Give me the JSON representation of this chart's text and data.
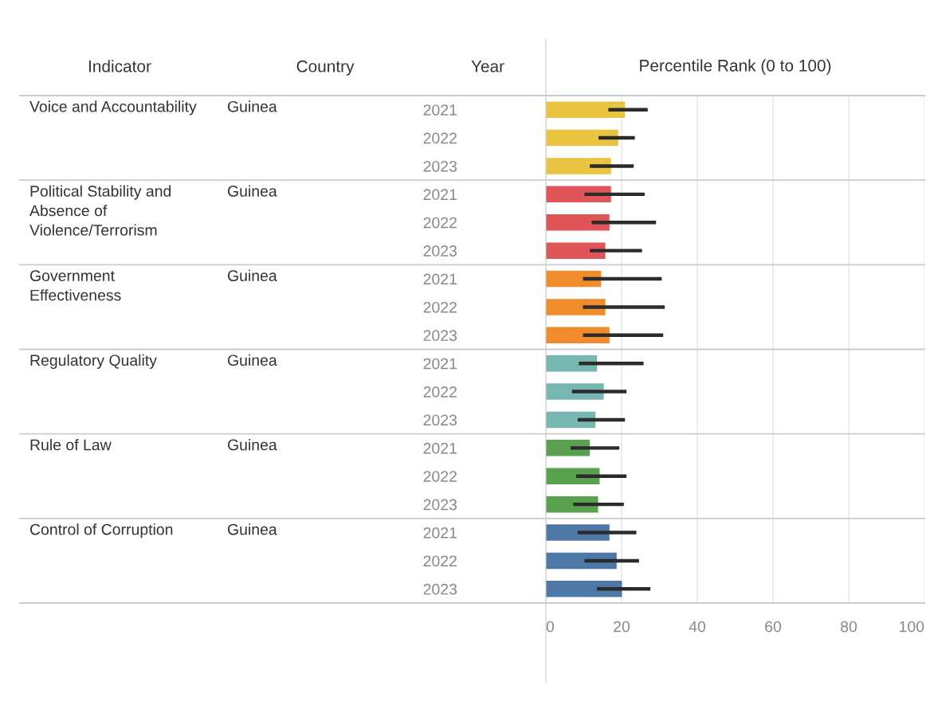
{
  "chart_data": {
    "type": "bar",
    "orientation": "horizontal",
    "xlabel": "Percentile Rank (0 to 100)",
    "categories": [
      "2021",
      "2022",
      "2023",
      "2021",
      "2022",
      "2023",
      "2021",
      "2022",
      "2023",
      "2021",
      "2022",
      "2023",
      "2021",
      "2022",
      "2023",
      "2021",
      "2022",
      "2023"
    ],
    "values": [
      20.9,
      19.1,
      17.2,
      17.2,
      16.8,
      15.7,
      14.6,
      15.7,
      16.8,
      13.5,
      15.3,
      13.1,
      11.6,
      14.2,
      13.8,
      16.8,
      18.7,
      20.1
    ],
    "errors": [
      [
        16.5,
        26.9
      ],
      [
        13.9,
        23.5
      ],
      [
        11.6,
        23.2
      ],
      [
        10.2,
        26.1
      ],
      [
        12.1,
        29.1
      ],
      [
        11.6,
        25.4
      ],
      [
        9.8,
        30.6
      ],
      [
        9.8,
        31.4
      ],
      [
        9.8,
        31.0
      ],
      [
        8.7,
        25.8
      ],
      [
        6.9,
        21.3
      ],
      [
        8.4,
        20.9
      ],
      [
        6.5,
        19.4
      ],
      [
        8.0,
        21.3
      ],
      [
        7.2,
        20.6
      ],
      [
        8.4,
        23.9
      ],
      [
        10.2,
        24.6
      ],
      [
        13.5,
        27.6
      ]
    ],
    "colors": [
      "#e8c440",
      "#e8c440",
      "#e8c440",
      "#e05558",
      "#e05558",
      "#e05558",
      "#f08c2c",
      "#f08c2c",
      "#f08c2c",
      "#76b7b2",
      "#76b7b2",
      "#76b7b2",
      "#59a14f",
      "#59a14f",
      "#59a14f",
      "#4e79a7",
      "#4e79a7",
      "#4e79a7"
    ],
    "annotations": [
      "Indicator",
      "Country",
      "Year",
      "Voice and Accountability",
      "Guinea",
      "Political Stability and\nAbsence of\nViolence/Terrorism",
      "Guinea",
      "Government\nEffectiveness",
      "Guinea",
      "Regulatory Quality",
      "Guinea",
      "Rule of Law",
      "Guinea",
      "Control of Corruption",
      "Guinea"
    ],
    "xlim": [
      0,
      100
    ],
    "xticks": [
      0,
      20,
      40,
      60,
      80,
      100
    ],
    "grid": "x"
  }
}
